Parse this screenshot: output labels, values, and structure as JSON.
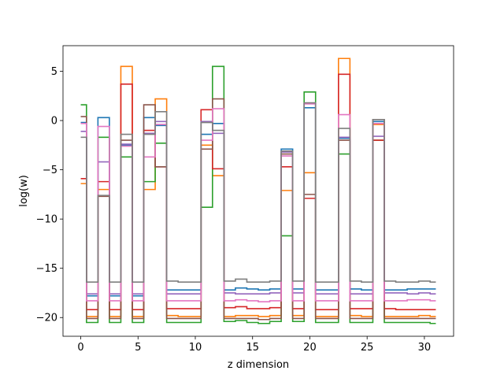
{
  "chart_data": {
    "type": "line",
    "step": "mid",
    "xlabel": "z dimension",
    "ylabel": "log(w)",
    "xlim": [
      -1.55,
      32.55
    ],
    "ylim": [
      -21.9,
      7.6
    ],
    "xticks": [
      0,
      5,
      10,
      15,
      20,
      25,
      30
    ],
    "yticks": [
      -20,
      -15,
      -10,
      -5,
      0,
      5
    ],
    "xtick_labels": [
      "0",
      "5",
      "10",
      "15",
      "20",
      "25",
      "30"
    ],
    "ytick_labels": [
      "−20",
      "−15",
      "−10",
      "−5",
      "0",
      "5"
    ],
    "x": [
      0,
      1,
      2,
      3,
      4,
      5,
      6,
      7,
      8,
      9,
      10,
      11,
      12,
      13,
      14,
      15,
      16,
      17,
      18,
      19,
      20,
      21,
      22,
      23,
      24,
      25,
      26,
      27,
      28,
      29,
      30,
      31
    ],
    "series": [
      {
        "color": "#1f77b4",
        "values": [
          -0.2,
          -17.8,
          0.3,
          -17.8,
          -2.5,
          -17.8,
          0.3,
          -0.5,
          -17.2,
          -17.2,
          -17.2,
          -1.4,
          -0.3,
          -17.2,
          -17.0,
          -17.1,
          -17.2,
          -17.1,
          -2.9,
          -17.1,
          1.3,
          -17.2,
          -17.2,
          -1.8,
          -17.1,
          -17.2,
          -0.1,
          -17.2,
          -17.2,
          -17.1,
          -17.1,
          -17.1
        ]
      },
      {
        "color": "#ff7f0e",
        "values": [
          -6.4,
          -19.9,
          -7.0,
          -19.9,
          5.5,
          -19.9,
          -7.0,
          2.2,
          -19.8,
          -19.9,
          -19.9,
          -2.5,
          -5.6,
          -19.9,
          -19.8,
          -19.8,
          -19.9,
          -19.8,
          -7.1,
          -19.8,
          -5.3,
          -19.9,
          -19.9,
          6.3,
          -19.8,
          -19.9,
          -0.4,
          -19.9,
          -19.9,
          -19.9,
          -19.8,
          -19.9
        ]
      },
      {
        "color": "#2ca02c",
        "values": [
          1.6,
          -20.5,
          -1.7,
          -20.5,
          -3.7,
          -20.5,
          -6.2,
          -2.3,
          -20.5,
          -20.5,
          -20.5,
          -8.8,
          5.5,
          -20.4,
          -20.3,
          -20.5,
          -20.6,
          -20.4,
          -11.7,
          -20.4,
          2.9,
          -20.5,
          -20.5,
          -3.4,
          -20.5,
          -20.5,
          -2.0,
          -20.5,
          -20.5,
          -20.5,
          -20.5,
          -20.6
        ]
      },
      {
        "color": "#d62728",
        "values": [
          -5.9,
          -19.2,
          -6.2,
          -19.2,
          3.7,
          -19.2,
          -1.0,
          -4.7,
          -19.1,
          -19.1,
          -19.1,
          1.1,
          -4.9,
          -19.0,
          -18.9,
          -19.1,
          -19.1,
          -19.0,
          -4.7,
          -19.1,
          -7.9,
          -19.2,
          -19.2,
          4.7,
          -19.1,
          -19.1,
          -2.0,
          -19.1,
          -19.2,
          -19.2,
          -19.2,
          -19.2
        ]
      },
      {
        "color": "#9467bd",
        "values": [
          -1.1,
          -17.6,
          -4.2,
          -17.6,
          -2.4,
          -17.6,
          -1.3,
          -0.1,
          -17.6,
          -17.6,
          -17.6,
          -0.1,
          -1.3,
          -17.5,
          -17.6,
          -17.6,
          -17.6,
          -17.5,
          -3.2,
          -17.5,
          1.7,
          -17.6,
          -17.6,
          -1.7,
          -17.6,
          -17.6,
          -1.6,
          -17.5,
          -17.5,
          -17.6,
          -17.5,
          -17.6
        ]
      },
      {
        "color": "#8c564b",
        "values": [
          0.4,
          -20.1,
          -7.7,
          -20.1,
          -2.0,
          -20.1,
          1.6,
          -4.7,
          -20.1,
          -20.1,
          -20.1,
          -2.9,
          2.2,
          -20.1,
          -20.1,
          -20.1,
          -20.2,
          -20.1,
          -3.4,
          -20.1,
          -7.5,
          -20.1,
          -20.1,
          -2.0,
          -20.1,
          -20.1,
          0.1,
          -20.1,
          -20.1,
          -20.1,
          -20.1,
          -20.1
        ]
      },
      {
        "color": "#e377c2",
        "values": [
          -0.3,
          -18.3,
          -0.6,
          -18.3,
          -2.6,
          -18.3,
          -3.7,
          -0.4,
          -18.3,
          -18.3,
          -18.3,
          -2.0,
          1.2,
          -18.3,
          -18.2,
          -18.3,
          -18.4,
          -18.3,
          -3.6,
          -18.3,
          1.7,
          -18.3,
          -18.3,
          0.6,
          -18.3,
          -18.3,
          -0.3,
          -18.3,
          -18.3,
          -18.2,
          -18.2,
          -18.3
        ]
      },
      {
        "color": "#7f7f7f",
        "values": [
          -1.7,
          -16.4,
          -7.6,
          -16.4,
          -1.4,
          -16.4,
          -1.4,
          0.9,
          -16.3,
          -16.4,
          -16.4,
          -0.2,
          -1.0,
          -16.3,
          -16.1,
          -16.4,
          -16.4,
          -16.3,
          -3.1,
          -16.3,
          1.8,
          -16.4,
          -16.4,
          -0.8,
          -16.3,
          -16.4,
          0.1,
          -16.3,
          -16.4,
          -16.4,
          -16.3,
          -16.4
        ]
      }
    ]
  }
}
